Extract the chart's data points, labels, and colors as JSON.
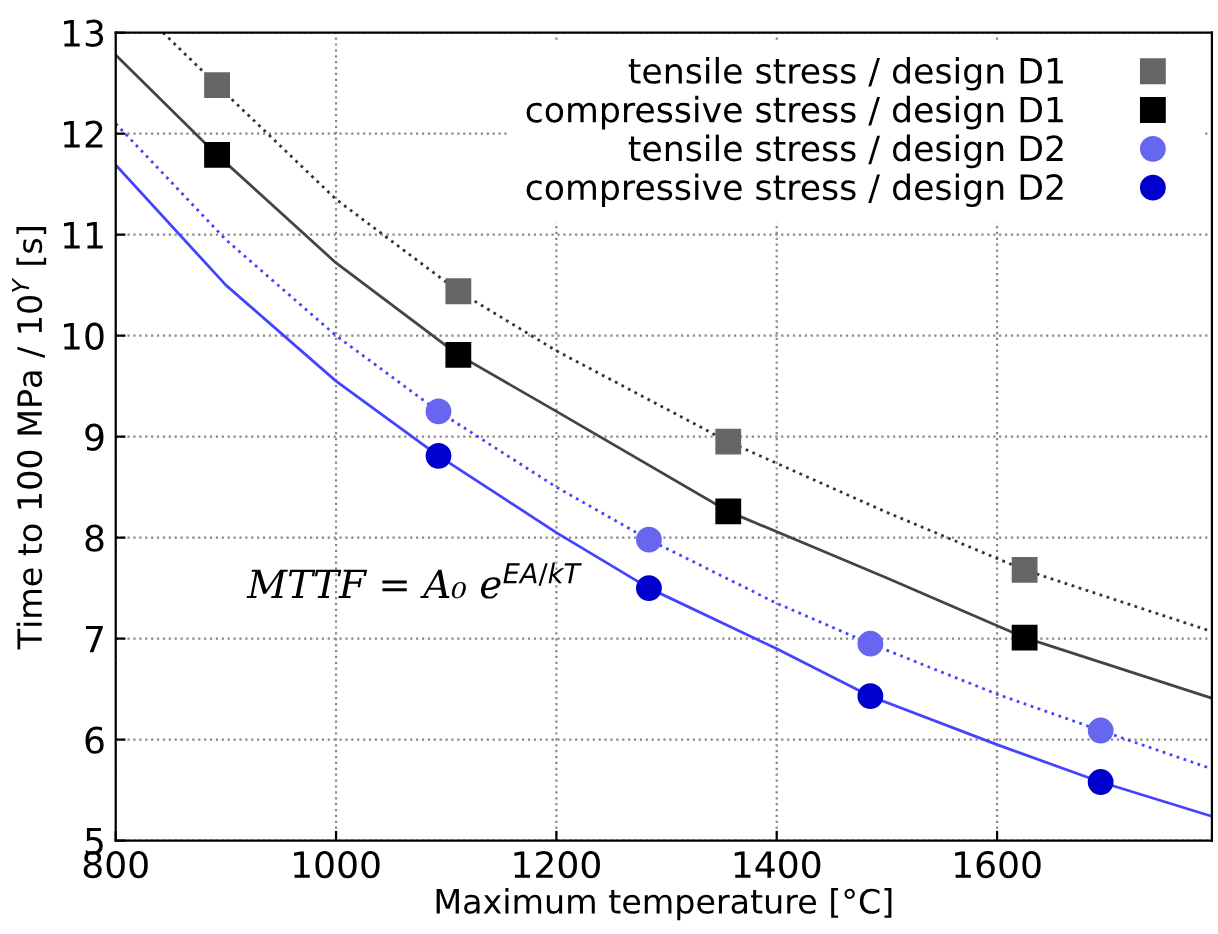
{
  "chart_data": {
    "type": "scatter",
    "xlabel": "Maximum temperature [°C]",
    "ylabel": "Time to 100 MPa / 10$^{Y}$ [s]",
    "xlim": [
      800,
      1795
    ],
    "xticks": [
      800,
      1000,
      1200,
      1400,
      1600
    ],
    "ylim": [
      5,
      13
    ],
    "yticks": [
      5,
      6,
      7,
      8,
      9,
      10,
      11,
      12,
      13
    ],
    "grid": true,
    "legend": "top right",
    "annotations": [
      "MTTF = A₀ e$^{EA/kT}$"
    ],
    "series": [
      {
        "type": "line",
        "color": "#333333",
        "line_style": "dotted",
        "marker": "none",
        "x": [
          843,
          892,
          1000,
          1111,
          1200,
          1356,
          1500,
          1625,
          1795
        ],
        "values": [
          13.0,
          12.48,
          11.35,
          10.44,
          9.85,
          8.95,
          8.25,
          7.68,
          7.07
        ]
      },
      {
        "type": "line",
        "color": "#444444",
        "line_style": "solid",
        "marker": "none",
        "x": [
          800,
          892,
          1000,
          1111,
          1200,
          1356,
          1500,
          1625,
          1795
        ],
        "values": [
          12.78,
          11.79,
          10.72,
          9.81,
          9.25,
          8.26,
          7.6,
          7.01,
          6.41
        ]
      },
      {
        "type": "line",
        "color": "#4444ff",
        "line_style": "dotted",
        "marker": "none",
        "x": [
          800,
          900,
          1000,
          1093,
          1200,
          1284,
          1400,
          1485,
          1600,
          1694,
          1795
        ],
        "values": [
          12.1,
          10.95,
          10.0,
          9.25,
          8.5,
          7.98,
          7.35,
          6.95,
          6.45,
          6.09,
          5.71
        ]
      },
      {
        "type": "line",
        "color": "#4444ff",
        "line_style": "solid",
        "marker": "none",
        "x": [
          800,
          900,
          1000,
          1093,
          1200,
          1284,
          1400,
          1485,
          1600,
          1694,
          1795
        ],
        "values": [
          11.69,
          10.5,
          9.55,
          8.81,
          8.05,
          7.5,
          6.9,
          6.43,
          5.95,
          5.58,
          5.24
        ]
      },
      {
        "name": "tensile stress / design D1",
        "color": "#666666",
        "marker": "square",
        "x": [
          892,
          1111,
          1356,
          1625
        ],
        "values": [
          12.48,
          10.44,
          8.95,
          7.68
        ]
      },
      {
        "name": "compressive stress / design D1",
        "color": "#000000",
        "marker": "square",
        "x": [
          892,
          1111,
          1356,
          1625
        ],
        "values": [
          11.79,
          9.81,
          8.26,
          7.01
        ]
      },
      {
        "name": "tensile stress / design D2",
        "color": "#6666ee",
        "marker": "circle",
        "x": [
          1093,
          1284,
          1485,
          1694
        ],
        "values": [
          9.25,
          7.98,
          6.95,
          6.09
        ]
      },
      {
        "name": "compressive stress / design D2",
        "color": "#0000cc",
        "marker": "circle",
        "x": [
          1093,
          1284,
          1485,
          1694
        ],
        "values": [
          8.81,
          7.5,
          6.43,
          5.58
        ]
      }
    ]
  }
}
